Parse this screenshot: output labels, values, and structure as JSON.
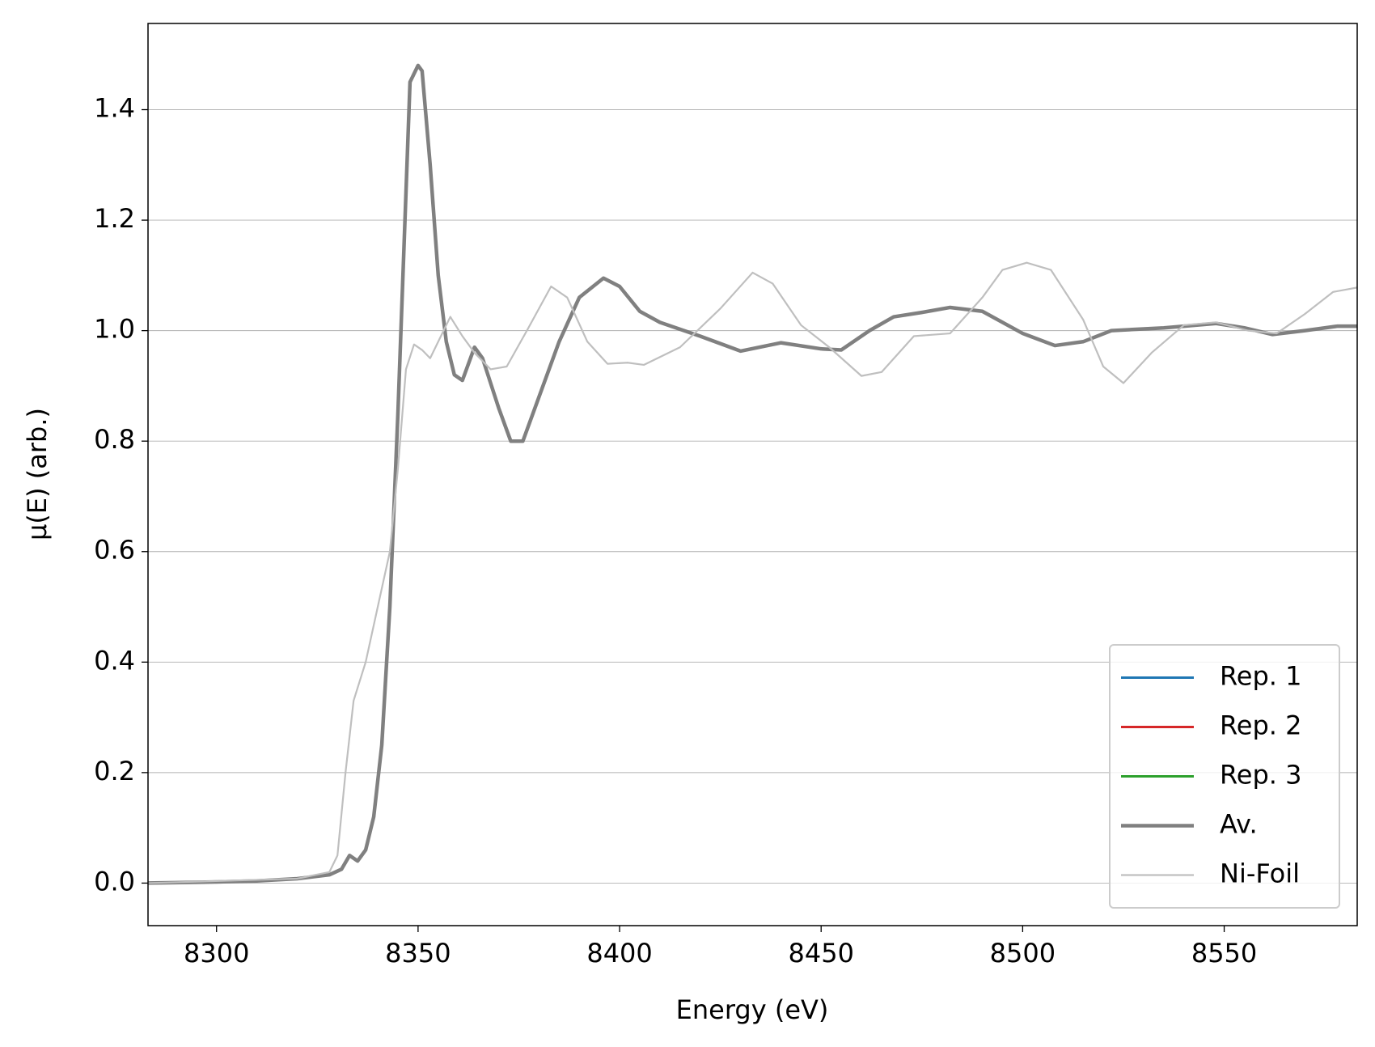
{
  "chart_data": {
    "type": "line",
    "xlabel": "Energy (eV)",
    "ylabel": "μ(E) (arb.)",
    "xlim": [
      8283,
      8583
    ],
    "xticks": [
      8300,
      8350,
      8400,
      8450,
      8500,
      8550
    ],
    "ylim": [
      -0.077,
      1.556
    ],
    "yticks": [
      {
        "value": 0,
        "label": "0.0"
      },
      0.2,
      0.4,
      0.6,
      0.8,
      {
        "value": 1,
        "label": "1.0"
      },
      1.2,
      1.4
    ],
    "grid": "y",
    "legend": "lower right",
    "series": [
      {
        "name": "Rep. 1",
        "color": "#1f77b4",
        "width": 3,
        "x": [
          8283,
          8300,
          8310,
          8320,
          8328,
          8331,
          8333,
          8335,
          8337,
          8339,
          8341,
          8343,
          8345,
          8347,
          8348,
          8350,
          8351,
          8353,
          8355,
          8357,
          8359,
          8361,
          8364,
          8366,
          8370,
          8373,
          8376,
          8380,
          8385,
          8390,
          8396,
          8400,
          8405,
          8410,
          8420,
          8430,
          8440,
          8450,
          8455,
          8462,
          8468,
          8475,
          8482,
          8490,
          8500,
          8508,
          8515,
          8522,
          8535,
          8548,
          8555,
          8562,
          8570,
          8578,
          8583
        ],
        "values": [
          0,
          0.002,
          0.004,
          0.008,
          0.015,
          0.025,
          0.05,
          0.04,
          0.06,
          0.12,
          0.25,
          0.5,
          0.85,
          1.25,
          1.45,
          1.48,
          1.47,
          1.3,
          1.1,
          0.98,
          0.92,
          0.91,
          0.97,
          0.95,
          0.86,
          0.8,
          0.8,
          0.88,
          0.98,
          1.06,
          1.095,
          1.08,
          1.035,
          1.015,
          0.99,
          0.963,
          0.978,
          0.967,
          0.965,
          1.0,
          1.025,
          1.033,
          1.042,
          1.035,
          0.995,
          0.973,
          0.98,
          1.0,
          1.005,
          1.013,
          1.005,
          0.993,
          1.0,
          1.008,
          1.008
        ]
      },
      {
        "name": "Rep. 2",
        "color": "#d62728",
        "width": 3,
        "x": [
          8283,
          8300,
          8310,
          8320,
          8328,
          8331,
          8333,
          8335,
          8337,
          8339,
          8341,
          8343,
          8345,
          8347,
          8348,
          8350,
          8351,
          8353,
          8355,
          8357,
          8359,
          8361,
          8364,
          8366,
          8370,
          8373,
          8376,
          8380,
          8385,
          8390,
          8396,
          8400,
          8405,
          8410,
          8420,
          8430,
          8440,
          8450,
          8455,
          8462,
          8468,
          8475,
          8482,
          8490,
          8500,
          8508,
          8515,
          8522,
          8535,
          8548,
          8555,
          8562,
          8570,
          8578,
          8583
        ],
        "values": [
          0,
          0.002,
          0.004,
          0.008,
          0.015,
          0.025,
          0.05,
          0.04,
          0.06,
          0.12,
          0.25,
          0.5,
          0.85,
          1.25,
          1.45,
          1.48,
          1.47,
          1.3,
          1.1,
          0.98,
          0.92,
          0.91,
          0.97,
          0.95,
          0.86,
          0.8,
          0.8,
          0.88,
          0.98,
          1.06,
          1.095,
          1.08,
          1.035,
          1.015,
          0.99,
          0.963,
          0.978,
          0.967,
          0.965,
          1.0,
          1.025,
          1.033,
          1.042,
          1.035,
          0.995,
          0.973,
          0.98,
          1.0,
          1.005,
          1.013,
          1.005,
          0.993,
          1.0,
          1.008,
          1.008
        ]
      },
      {
        "name": "Rep. 3",
        "color": "#2ca02c",
        "width": 3,
        "x": [
          8283,
          8300,
          8310,
          8320,
          8328,
          8331,
          8333,
          8335,
          8337,
          8339,
          8341,
          8343,
          8345,
          8347,
          8348,
          8350,
          8351,
          8353,
          8355,
          8357,
          8359,
          8361,
          8364,
          8366,
          8370,
          8373,
          8376,
          8380,
          8385,
          8390,
          8396,
          8400,
          8405,
          8410,
          8420,
          8430,
          8440,
          8450,
          8455,
          8462,
          8468,
          8475,
          8482,
          8490,
          8500,
          8508,
          8515,
          8522,
          8535,
          8548,
          8555,
          8562,
          8570,
          8578,
          8583
        ],
        "values": [
          0,
          0.002,
          0.004,
          0.008,
          0.015,
          0.025,
          0.05,
          0.04,
          0.06,
          0.12,
          0.25,
          0.5,
          0.85,
          1.25,
          1.45,
          1.48,
          1.47,
          1.3,
          1.1,
          0.98,
          0.92,
          0.91,
          0.97,
          0.95,
          0.86,
          0.8,
          0.8,
          0.88,
          0.98,
          1.06,
          1.095,
          1.08,
          1.035,
          1.015,
          0.99,
          0.963,
          0.978,
          0.967,
          0.965,
          1.0,
          1.025,
          1.033,
          1.042,
          1.035,
          0.995,
          0.973,
          0.98,
          1.0,
          1.005,
          1.013,
          1.005,
          0.993,
          1.0,
          1.008,
          1.008
        ]
      },
      {
        "name": "Av.",
        "color": "#808080",
        "width": 4.5,
        "x": [
          8283,
          8300,
          8310,
          8320,
          8328,
          8331,
          8333,
          8335,
          8337,
          8339,
          8341,
          8343,
          8345,
          8347,
          8348,
          8350,
          8351,
          8353,
          8355,
          8357,
          8359,
          8361,
          8364,
          8366,
          8370,
          8373,
          8376,
          8380,
          8385,
          8390,
          8396,
          8400,
          8405,
          8410,
          8420,
          8430,
          8440,
          8450,
          8455,
          8462,
          8468,
          8475,
          8482,
          8490,
          8500,
          8508,
          8515,
          8522,
          8535,
          8548,
          8555,
          8562,
          8570,
          8578,
          8583
        ],
        "values": [
          0,
          0.002,
          0.004,
          0.008,
          0.015,
          0.025,
          0.05,
          0.04,
          0.06,
          0.12,
          0.25,
          0.5,
          0.85,
          1.25,
          1.45,
          1.48,
          1.47,
          1.3,
          1.1,
          0.98,
          0.92,
          0.91,
          0.97,
          0.95,
          0.86,
          0.8,
          0.8,
          0.88,
          0.98,
          1.06,
          1.095,
          1.08,
          1.035,
          1.015,
          0.99,
          0.963,
          0.978,
          0.967,
          0.965,
          1.0,
          1.025,
          1.033,
          1.042,
          1.035,
          0.995,
          0.973,
          0.98,
          1.0,
          1.005,
          1.013,
          1.005,
          0.993,
          1.0,
          1.008,
          1.008
        ]
      },
      {
        "name": "Ni-Foil",
        "color": "#bfbfbf",
        "width": 2.2,
        "x": [
          8283,
          8320,
          8328,
          8330,
          8332,
          8334,
          8337,
          8340,
          8343,
          8345,
          8347,
          8349,
          8351,
          8353,
          8355,
          8358,
          8361,
          8364,
          8368,
          8372,
          8377,
          8383,
          8387,
          8392,
          8397,
          8402,
          8406,
          8415,
          8425,
          8433,
          8438,
          8445,
          8452,
          8460,
          8465,
          8473,
          8482,
          8490,
          8495,
          8501,
          8507,
          8515,
          8520,
          8525,
          8532,
          8540,
          8548,
          8556,
          8563,
          8570,
          8577,
          8583
        ],
        "values": [
          0,
          0.008,
          0.02,
          0.05,
          0.2,
          0.33,
          0.4,
          0.5,
          0.6,
          0.75,
          0.93,
          0.975,
          0.965,
          0.95,
          0.98,
          1.025,
          0.99,
          0.96,
          0.93,
          0.935,
          1.0,
          1.08,
          1.06,
          0.98,
          0.94,
          0.942,
          0.938,
          0.97,
          1.04,
          1.105,
          1.085,
          1.01,
          0.97,
          0.918,
          0.925,
          0.99,
          0.995,
          1.06,
          1.11,
          1.123,
          1.11,
          1.02,
          0.935,
          0.905,
          0.96,
          1.01,
          1.015,
          1.0,
          0.995,
          1.03,
          1.07,
          1.078
        ]
      }
    ]
  }
}
